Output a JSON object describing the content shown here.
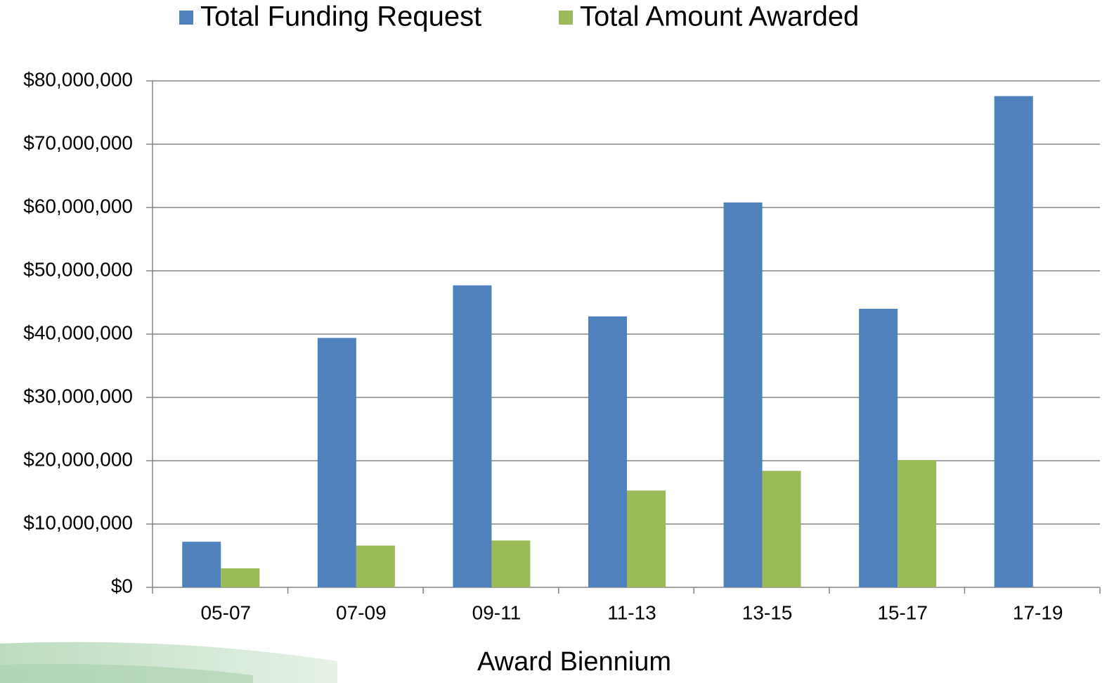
{
  "chart_data": {
    "type": "bar",
    "x_label": "Award Biennium",
    "categories": [
      "05-07",
      "07-09",
      "09-11",
      "11-13",
      "13-15",
      "15-17",
      "17-19"
    ],
    "series": [
      {
        "name": "Total Funding Request",
        "color": "#4f81bd",
        "values": [
          7200000,
          39400000,
          47700000,
          42800000,
          60800000,
          44000000,
          77600000
        ]
      },
      {
        "name": "Total Amount Awarded",
        "color": "#9bbb59",
        "values": [
          3000000,
          6600000,
          7400000,
          15300000,
          18400000,
          20100000,
          null
        ]
      }
    ],
    "ylim": [
      0,
      80000000
    ],
    "yticks": [
      {
        "value": 0,
        "label": "$0"
      },
      {
        "value": 10000000,
        "label": "$10,000,000"
      },
      {
        "value": 20000000,
        "label": "$20,000,000"
      },
      {
        "value": 30000000,
        "label": "$30,000,000"
      },
      {
        "value": 40000000,
        "label": "$40,000,000"
      },
      {
        "value": 50000000,
        "label": "$50,000,000"
      },
      {
        "value": 60000000,
        "label": "$60,000,000"
      },
      {
        "value": 70000000,
        "label": "$70,000,000"
      },
      {
        "value": 80000000,
        "label": "$80,000,000"
      }
    ],
    "grid": true,
    "legend": "top"
  }
}
